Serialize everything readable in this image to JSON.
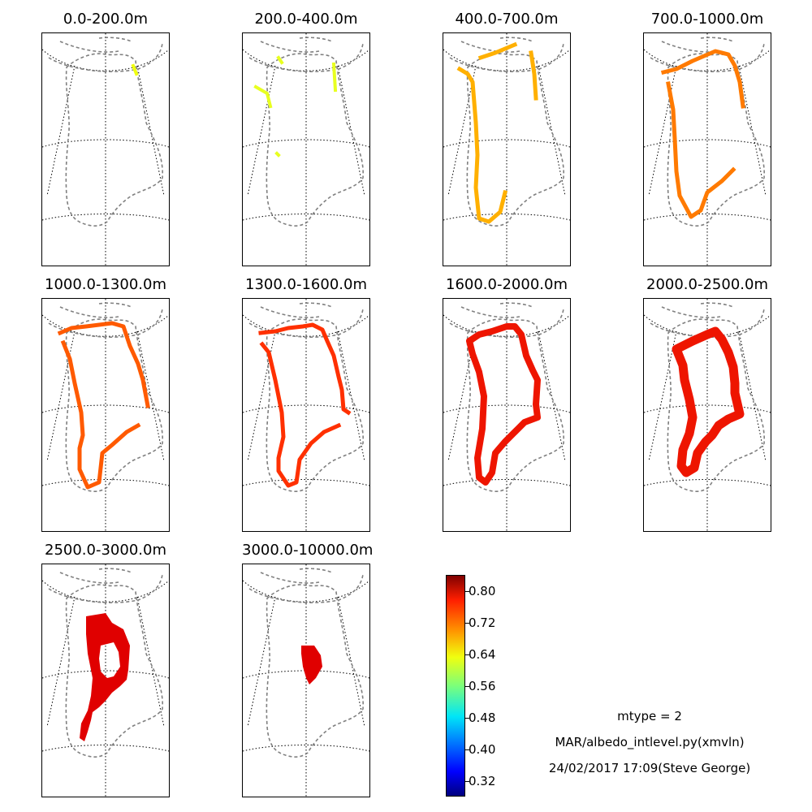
{
  "figure": {
    "panels": [
      {
        "title": "0.0-200.0m"
      },
      {
        "title": "200.0-400.0m"
      },
      {
        "title": "400.0-700.0m"
      },
      {
        "title": "700.0-1000.0m"
      },
      {
        "title": "1000.0-1300.0m"
      },
      {
        "title": "1300.0-1600.0m"
      },
      {
        "title": "1600.0-2000.0m"
      },
      {
        "title": "2000.0-2500.0m"
      },
      {
        "title": "2500.0-3000.0m"
      },
      {
        "title": "3000.0-10000.0m"
      }
    ],
    "colorbar": {
      "ticks": [
        "0.32",
        "0.40",
        "0.48",
        "0.56",
        "0.64",
        "0.72",
        "0.80"
      ],
      "range": [
        0.28,
        0.84
      ],
      "colormap": "jet"
    },
    "notes": {
      "mtype": "mtype = 2",
      "script": "MAR/albedo_intlevel.py(xmvln)",
      "stamp": "24/02/2017 17:09(Steve George)"
    }
  },
  "colors": {
    "coast": "#808080",
    "grid": "#000000",
    "level_colors": [
      "#f0ff0f",
      "#e8ff20",
      "#ffb000",
      "#ff7a00",
      "#ff5a00",
      "#ff3000",
      "#ee1500",
      "#ee1500",
      "#e00000",
      "#e00000"
    ]
  }
}
